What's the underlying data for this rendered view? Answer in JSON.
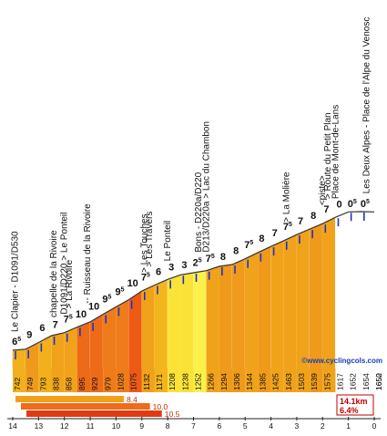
{
  "chart_data": {
    "type": "area",
    "credit": "©www.cyclingcols.com",
    "x_km_ticks": [
      "14",
      "13",
      "12",
      "11",
      "10",
      "9",
      "8",
      "7",
      "6",
      "5",
      "4",
      "3",
      "2",
      "1",
      "0"
    ],
    "segments": [
      {
        "km": 0.5,
        "grade": "6",
        "grade_frac": "5",
        "color": "#f2b01a"
      },
      {
        "km": 0.5,
        "grade": "9",
        "grade_frac": "",
        "color": "#ee9a1a"
      },
      {
        "km": 0.5,
        "grade": "6",
        "grade_frac": "",
        "color": "#f2b01a"
      },
      {
        "km": 0.5,
        "grade": "7",
        "grade_frac": "",
        "color": "#f0a31a"
      },
      {
        "km": 0.5,
        "grade": "7",
        "grade_frac": "5",
        "color": "#f0a31a"
      },
      {
        "km": 0.5,
        "grade": "10",
        "grade_frac": "",
        "color": "#ec6a18"
      },
      {
        "km": 0.5,
        "grade": "10",
        "grade_frac": "",
        "color": "#ec6a18"
      },
      {
        "km": 0.5,
        "grade": "9",
        "grade_frac": "5",
        "color": "#ee7c1a"
      },
      {
        "km": 0.5,
        "grade": "9",
        "grade_frac": "5",
        "color": "#ee7c1a"
      },
      {
        "km": 0.5,
        "grade": "10",
        "grade_frac": "",
        "color": "#ec5a14"
      },
      {
        "km": 0.5,
        "grade": "7",
        "grade_frac": "5",
        "color": "#f0a31a"
      },
      {
        "km": 0.5,
        "grade": "6",
        "grade_frac": "",
        "color": "#f3b51c"
      },
      {
        "km": 0.5,
        "grade": "3",
        "grade_frac": "",
        "color": "#fbe236"
      },
      {
        "km": 0.5,
        "grade": "3",
        "grade_frac": "",
        "color": "#fbe236"
      },
      {
        "km": 0.5,
        "grade": "2",
        "grade_frac": "5",
        "color": "#fcf04a"
      },
      {
        "km": 0.5,
        "grade": "7",
        "grade_frac": "5",
        "color": "#f0a31a"
      },
      {
        "km": 0.5,
        "grade": "8",
        "grade_frac": "",
        "color": "#ef9a1a"
      },
      {
        "km": 0.5,
        "grade": "8",
        "grade_frac": "",
        "color": "#ef9a1a"
      },
      {
        "km": 0.5,
        "grade": "7",
        "grade_frac": "5",
        "color": "#f0a31a"
      },
      {
        "km": 0.5,
        "grade": "8",
        "grade_frac": "",
        "color": "#ef9a1a"
      },
      {
        "km": 0.5,
        "grade": "7",
        "grade_frac": "",
        "color": "#f0a31a"
      },
      {
        "km": 0.5,
        "grade": "7",
        "grade_frac": "5",
        "color": "#f0a31a"
      },
      {
        "km": 0.5,
        "grade": "7",
        "grade_frac": "",
        "color": "#f0a31a"
      },
      {
        "km": 0.5,
        "grade": "8",
        "grade_frac": "",
        "color": "#ef9a1a"
      },
      {
        "km": 0.5,
        "grade": "7",
        "grade_frac": "",
        "color": "#f0a31a"
      },
      {
        "km": 0.5,
        "grade": "0",
        "grade_frac": "",
        "color": "#ffffff"
      },
      {
        "km": 0.5,
        "grade": "0",
        "grade_frac": "5",
        "color": "#ffffff"
      },
      {
        "km": 0.5,
        "grade": "0",
        "grade_frac": "5",
        "color": "#ffffff"
      }
    ],
    "altitudes": [
      "742",
      "749",
      "793",
      "838",
      "858",
      "895",
      "929",
      "979",
      "1028",
      "1075",
      "1132",
      "1171",
      "1208",
      "1238",
      "1252",
      "1266",
      "1294",
      "1306",
      "1344",
      "1385",
      "1425",
      "1463",
      "1503",
      "1539",
      "1575",
      "1617",
      "1652",
      "1654",
      "1652",
      "1650"
    ],
    "landmarks": [
      {
        "label": "Le Clapier - D1091/D530",
        "km": 13.8
      },
      {
        "label": "chapelle de la Rivoire",
        "km": 12.3
      },
      {
        "label": "D1091/D220 > Le Ponteil",
        "km": 11.9
      },
      {
        "label": "> La Rivoire",
        "km": 11.7
      },
      {
        "label": "-- Ruisseau de la Rivoire",
        "km": 11.0
      },
      {
        "label": "> Les Touches",
        "km": 8.8
      },
      {
        "label": "> Les Travers",
        "km": 8.6
      },
      {
        "label": "Le Ponteil",
        "km": 7.9
      },
      {
        "label": "Bons - D220a/D220",
        "km": 6.7
      },
      {
        "label": "D213/D220a > Lac du Chambon",
        "km": 6.4
      },
      {
        "label": "> La Molière",
        "km": 3.3
      },
      {
        "label": "<piste>",
        "km": 1.9
      },
      {
        "label": "> Route du Petit Plan",
        "km": 1.7
      },
      {
        "label": "Place de Mont-de-Lans",
        "km": 1.4
      },
      {
        "label": "Les Deux Alpes - Place de l'Alpe du Venosc",
        "km": 0.2
      }
    ],
    "summary_bars": [
      {
        "label": "8.4",
        "value": 8.4,
        "color": "#f2a01a"
      },
      {
        "label": "10.0",
        "value": 10.0,
        "color": "#f06a18"
      },
      {
        "label": "10.5",
        "value": 10.5,
        "color": "#e23a10"
      }
    ],
    "summary_max": 12,
    "total_distance": "14.1km",
    "avg_grade": "6.4%"
  }
}
